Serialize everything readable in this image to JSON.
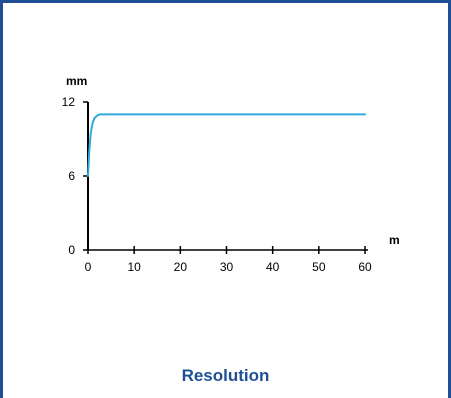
{
  "caption": "Resolution",
  "colors": {
    "frame": "#1f5096",
    "caption": "#1f5096",
    "axis": "#000000",
    "curve": "#33aadd"
  },
  "chart_data": {
    "type": "line",
    "title": "",
    "xlabel": "m",
    "ylabel": "mm",
    "xlim": [
      0,
      60
    ],
    "ylim": [
      0,
      12
    ],
    "x_ticks": [
      0,
      10,
      20,
      30,
      40,
      50,
      60
    ],
    "y_ticks": [
      0,
      6,
      12
    ],
    "grid": false,
    "legend": "none",
    "series": [
      {
        "x": [
          0,
          0.3,
          0.6,
          1.0,
          1.4,
          2.0,
          2.6,
          3.0,
          10,
          20,
          30,
          40,
          50,
          60
        ],
        "y": [
          6.0,
          8.2,
          9.5,
          10.3,
          10.7,
          10.9,
          11.0,
          11.0,
          11.0,
          11.0,
          11.0,
          11.0,
          11.0,
          11.0
        ]
      }
    ]
  }
}
